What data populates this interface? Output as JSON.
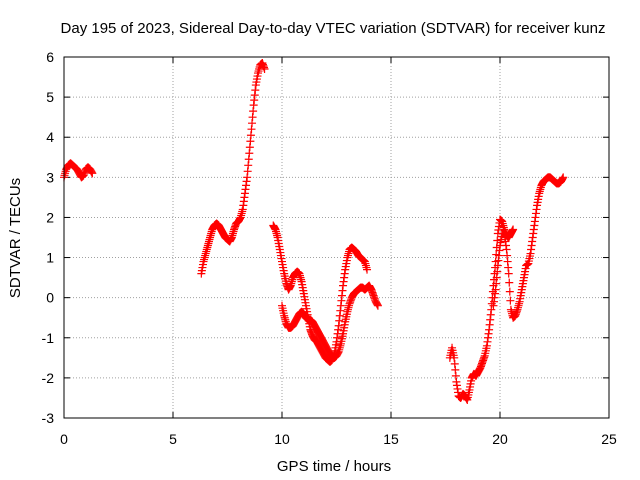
{
  "chart_data": {
    "type": "scatter",
    "title": "Day 195 of 2023, Sidereal Day-to-day VTEC variation (SDTVAR) for receiver kunz",
    "xlabel": "GPS time / hours",
    "ylabel": "SDTVAR / TECUs",
    "xlim": [
      0,
      25
    ],
    "ylim": [
      -3,
      6
    ],
    "xticks": [
      "0",
      "5",
      "10",
      "15",
      "20",
      "25"
    ],
    "yticks": [
      "-3",
      "-2",
      "-1",
      "0",
      "1",
      "2",
      "3",
      "4",
      "5",
      "6"
    ],
    "grid": true,
    "marker": "+",
    "colors": {
      "points": "#ff0000",
      "grid": "#a0a0a0",
      "axes": "#000000"
    },
    "series": [
      {
        "segments": [
          [
            [
              0.0,
              3.0
            ],
            [
              0.1,
              3.2
            ],
            [
              0.2,
              3.3
            ],
            [
              0.3,
              3.35
            ],
            [
              0.4,
              3.3
            ],
            [
              0.5,
              3.25
            ],
            [
              0.6,
              3.2
            ],
            [
              0.7,
              3.1
            ],
            [
              0.8,
              3.0
            ],
            [
              0.9,
              3.05
            ],
            [
              1.0,
              3.2
            ],
            [
              1.1,
              3.25
            ],
            [
              1.2,
              3.2
            ],
            [
              1.3,
              3.1
            ]
          ],
          [
            [
              6.3,
              0.6
            ],
            [
              6.4,
              0.9
            ],
            [
              6.5,
              1.1
            ],
            [
              6.6,
              1.3
            ],
            [
              6.7,
              1.5
            ],
            [
              6.8,
              1.7
            ],
            [
              6.9,
              1.8
            ],
            [
              7.0,
              1.85
            ],
            [
              7.1,
              1.8
            ],
            [
              7.2,
              1.7
            ],
            [
              7.3,
              1.6
            ],
            [
              7.4,
              1.5
            ],
            [
              7.5,
              1.45
            ],
            [
              7.6,
              1.4
            ],
            [
              7.7,
              1.5
            ],
            [
              7.8,
              1.7
            ],
            [
              7.9,
              1.85
            ],
            [
              8.0,
              1.9
            ],
            [
              8.1,
              2.0
            ],
            [
              8.2,
              2.2
            ],
            [
              8.3,
              2.6
            ],
            [
              8.4,
              3.0
            ],
            [
              8.5,
              3.6
            ],
            [
              8.6,
              4.2
            ],
            [
              8.7,
              4.8
            ],
            [
              8.8,
              5.3
            ],
            [
              8.9,
              5.6
            ],
            [
              9.0,
              5.8
            ],
            [
              9.1,
              5.85
            ],
            [
              9.2,
              5.7
            ]
          ],
          [
            [
              9.6,
              1.8
            ],
            [
              9.7,
              1.7
            ],
            [
              9.8,
              1.5
            ],
            [
              9.9,
              1.2
            ],
            [
              10.0,
              0.9
            ],
            [
              10.1,
              0.6
            ],
            [
              10.2,
              0.35
            ],
            [
              10.3,
              0.2
            ],
            [
              10.4,
              0.3
            ],
            [
              10.5,
              0.5
            ],
            [
              10.6,
              0.6
            ],
            [
              10.7,
              0.65
            ],
            [
              10.8,
              0.6
            ],
            [
              10.9,
              0.4
            ],
            [
              11.0,
              0.1
            ],
            [
              11.1,
              -0.2
            ],
            [
              11.2,
              -0.5
            ],
            [
              11.3,
              -0.8
            ],
            [
              11.4,
              -0.95
            ],
            [
              11.5,
              -1.05
            ],
            [
              11.6,
              -1.1
            ],
            [
              11.7,
              -1.2
            ],
            [
              11.8,
              -1.3
            ],
            [
              11.9,
              -1.4
            ],
            [
              12.0,
              -1.5
            ],
            [
              12.1,
              -1.55
            ],
            [
              12.2,
              -1.6
            ],
            [
              12.3,
              -1.55
            ],
            [
              12.4,
              -1.4
            ],
            [
              12.5,
              -1.1
            ],
            [
              12.6,
              -0.7
            ],
            [
              12.7,
              -0.2
            ],
            [
              12.8,
              0.3
            ],
            [
              12.9,
              0.7
            ],
            [
              13.0,
              1.0
            ],
            [
              13.1,
              1.2
            ],
            [
              13.2,
              1.25
            ],
            [
              13.3,
              1.2
            ],
            [
              13.4,
              1.15
            ],
            [
              13.5,
              1.05
            ],
            [
              13.6,
              1.0
            ],
            [
              13.7,
              0.95
            ],
            [
              13.8,
              0.9
            ],
            [
              13.9,
              0.7
            ]
          ],
          [
            [
              10.0,
              -0.2
            ],
            [
              10.1,
              -0.45
            ],
            [
              10.2,
              -0.65
            ],
            [
              10.3,
              -0.75
            ],
            [
              10.4,
              -0.75
            ],
            [
              10.5,
              -0.7
            ],
            [
              10.6,
              -0.6
            ],
            [
              10.7,
              -0.5
            ],
            [
              10.8,
              -0.4
            ],
            [
              10.9,
              -0.35
            ],
            [
              11.0,
              -0.4
            ],
            [
              11.1,
              -0.5
            ],
            [
              11.2,
              -0.55
            ],
            [
              11.3,
              -0.55
            ],
            [
              11.4,
              -0.6
            ],
            [
              11.5,
              -0.7
            ],
            [
              11.6,
              -0.8
            ],
            [
              11.7,
              -0.9
            ],
            [
              11.8,
              -1.0
            ],
            [
              11.9,
              -1.1
            ],
            [
              12.0,
              -1.2
            ],
            [
              12.1,
              -1.3
            ],
            [
              12.2,
              -1.4
            ],
            [
              12.3,
              -1.45
            ],
            [
              12.4,
              -1.5
            ],
            [
              12.5,
              -1.45
            ],
            [
              12.6,
              -1.35
            ],
            [
              12.7,
              -1.15
            ],
            [
              12.8,
              -0.9
            ],
            [
              12.9,
              -0.6
            ],
            [
              13.0,
              -0.35
            ],
            [
              13.1,
              -0.15
            ],
            [
              13.2,
              0.0
            ],
            [
              13.3,
              0.1
            ],
            [
              13.4,
              0.15
            ],
            [
              13.5,
              0.2
            ],
            [
              13.6,
              0.25
            ],
            [
              13.7,
              0.25
            ],
            [
              13.8,
              0.2
            ],
            [
              13.9,
              0.25
            ],
            [
              14.0,
              0.3
            ],
            [
              14.1,
              0.2
            ],
            [
              14.2,
              0.05
            ],
            [
              14.3,
              -0.1
            ],
            [
              14.4,
              -0.2
            ]
          ],
          [
            [
              17.7,
              -1.5
            ],
            [
              17.8,
              -1.25
            ],
            [
              17.9,
              -1.5
            ],
            [
              18.0,
              -2.1
            ],
            [
              18.1,
              -2.45
            ],
            [
              18.2,
              -2.5
            ],
            [
              18.3,
              -2.4
            ],
            [
              18.4,
              -2.45
            ],
            [
              18.5,
              -2.55
            ],
            [
              18.6,
              -2.3
            ],
            [
              18.7,
              -2.0
            ],
            [
              18.8,
              -1.9
            ],
            [
              18.9,
              -1.95
            ],
            [
              19.0,
              -1.85
            ],
            [
              19.1,
              -1.75
            ],
            [
              19.2,
              -1.6
            ],
            [
              19.3,
              -1.45
            ],
            [
              19.4,
              -1.2
            ],
            [
              19.5,
              -0.8
            ],
            [
              19.6,
              -0.3
            ],
            [
              19.7,
              0.3
            ],
            [
              19.8,
              0.9
            ],
            [
              19.9,
              1.6
            ],
            [
              20.0,
              1.95
            ],
            [
              20.1,
              1.9
            ],
            [
              20.2,
              1.7
            ],
            [
              20.3,
              1.55
            ],
            [
              20.4,
              1.5
            ],
            [
              20.5,
              1.6
            ],
            [
              20.6,
              1.7
            ]
          ],
          [
            [
              19.7,
              -0.2
            ],
            [
              19.8,
              0.2
            ],
            [
              19.9,
              0.8
            ],
            [
              20.0,
              1.3
            ],
            [
              20.1,
              1.6
            ],
            [
              20.2,
              1.6
            ],
            [
              20.3,
              1.2
            ],
            [
              20.4,
              0.6
            ],
            [
              20.5,
              -0.3
            ],
            [
              20.6,
              -0.5
            ],
            [
              20.7,
              -0.45
            ],
            [
              20.8,
              -0.3
            ],
            [
              20.9,
              -0.1
            ],
            [
              21.0,
              0.2
            ],
            [
              21.1,
              0.5
            ],
            [
              21.2,
              0.8
            ],
            [
              21.3,
              0.85
            ],
            [
              21.4,
              1.1
            ],
            [
              21.5,
              1.5
            ],
            [
              21.6,
              1.9
            ],
            [
              21.7,
              2.3
            ],
            [
              21.8,
              2.6
            ],
            [
              21.9,
              2.8
            ],
            [
              22.0,
              2.9
            ],
            [
              22.1,
              2.95
            ],
            [
              22.2,
              3.0
            ],
            [
              22.3,
              3.0
            ],
            [
              22.4,
              2.95
            ],
            [
              22.5,
              2.9
            ],
            [
              22.6,
              2.85
            ],
            [
              22.7,
              2.85
            ],
            [
              22.8,
              2.9
            ],
            [
              22.9,
              3.0
            ]
          ]
        ]
      }
    ]
  }
}
